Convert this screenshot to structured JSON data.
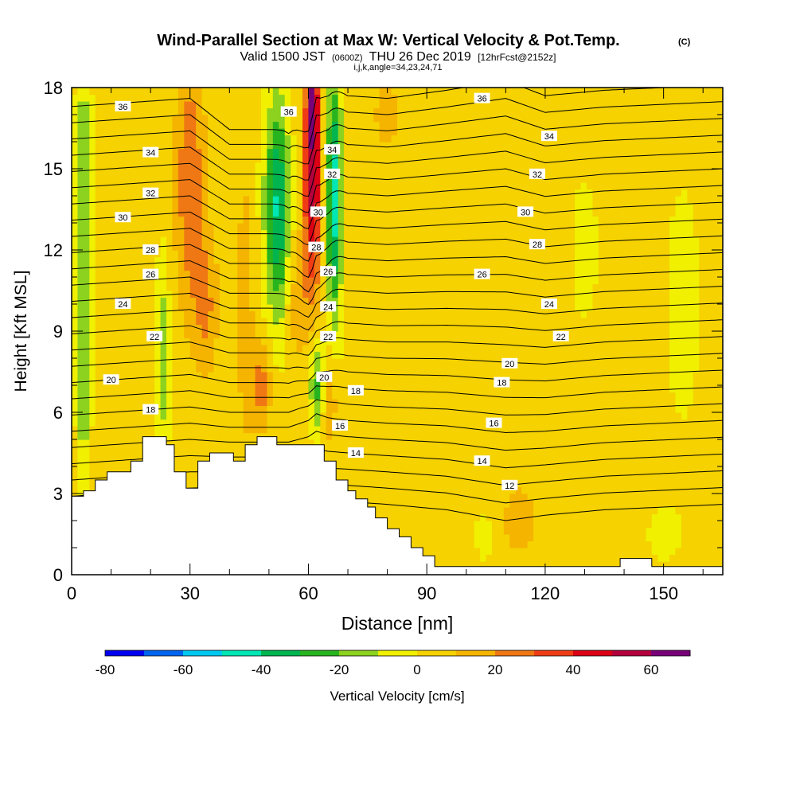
{
  "header": {
    "title": "Wind-Parallel Section at Max W: Vertical Velocity & Pot.Temp.",
    "copyright": "(C)",
    "valid_prefix": "Valid 1500 JST",
    "utc": "(0600Z)",
    "valid_date": "THU 26 Dec 2019",
    "forecast": "[12hrFcst@2152z]",
    "indices": "i,j,k,angle=34,23,24,71"
  },
  "chart_data": {
    "type": "heatmap",
    "title": "Wind-Parallel Section at Max W: Vertical Velocity & Pot.Temp.",
    "xlabel": "Distance [nm]",
    "ylabel": "Height [Kft MSL]",
    "xlim": [
      0,
      165
    ],
    "ylim": [
      0,
      18
    ],
    "x_ticks": [
      "0",
      "30",
      "60",
      "90",
      "120",
      "150"
    ],
    "x_tick_values": [
      0,
      30,
      60,
      90,
      120,
      150
    ],
    "y_ticks": [
      "0",
      "3",
      "6",
      "9",
      "12",
      "15",
      "18"
    ],
    "y_tick_values": [
      0,
      3,
      6,
      9,
      12,
      15,
      18
    ],
    "colorbar": {
      "label": "Vertical Velocity [cm/s]",
      "range": [
        -80,
        70
      ],
      "step": 10,
      "ticks": [
        "-80",
        "-60",
        "-40",
        "-20",
        "0",
        "20",
        "40",
        "60"
      ],
      "tick_values": [
        -80,
        -60,
        -40,
        -20,
        0,
        20,
        40,
        60
      ],
      "colors": [
        "#0000f0",
        "#0064f0",
        "#00c8f0",
        "#00e6b4",
        "#00b450",
        "#28b41e",
        "#8cd21e",
        "#f0f000",
        "#f5d200",
        "#f5b400",
        "#f07814",
        "#f03c14",
        "#dc0014",
        "#b4003c",
        "#780078"
      ]
    },
    "background_w": 4,
    "w_features": [
      {
        "x": 3,
        "y": 9,
        "sx": 1.8,
        "sy": 5.5,
        "w": -28
      },
      {
        "x": 3,
        "y": 16,
        "sx": 2,
        "sy": 2.5,
        "w": -20
      },
      {
        "x": 23,
        "y": 8,
        "sx": 1.8,
        "sy": 3.5,
        "w": -22
      },
      {
        "x": 30,
        "y": 14.5,
        "sx": 3.5,
        "sy": 4.5,
        "w": 26
      },
      {
        "x": 34,
        "y": 10,
        "sx": 3,
        "sy": 2.5,
        "w": 18
      },
      {
        "x": 44,
        "y": 10,
        "sx": 2.5,
        "sy": 6,
        "w": 10
      },
      {
        "x": 48,
        "y": 7,
        "sx": 2.5,
        "sy": 1.5,
        "w": 22
      },
      {
        "x": 50,
        "y": 14,
        "sx": 3,
        "sy": 4,
        "w": -10
      },
      {
        "x": 52.5,
        "y": 13.5,
        "sx": 2.8,
        "sy": 4.2,
        "w": -40
      },
      {
        "x": 57,
        "y": 10,
        "sx": 3,
        "sy": 2.2,
        "w": 12
      },
      {
        "x": 61,
        "y": 15,
        "sx": 2.2,
        "sy": 4.5,
        "w": 55
      },
      {
        "x": 61,
        "y": 17.5,
        "sx": 1.2,
        "sy": 1.2,
        "w": 30
      },
      {
        "x": 66.5,
        "y": 14,
        "sx": 2,
        "sy": 4.5,
        "w": -50
      },
      {
        "x": 62,
        "y": 7,
        "sx": 1.8,
        "sy": 1.8,
        "w": -28
      },
      {
        "x": 65.5,
        "y": 6.5,
        "sx": 1.5,
        "sy": 1.5,
        "w": 18
      },
      {
        "x": 113,
        "y": 2,
        "sx": 4,
        "sy": 1.2,
        "w": 16
      },
      {
        "x": 80,
        "y": 17,
        "sx": 4,
        "sy": 1.5,
        "w": 10
      },
      {
        "x": 130,
        "y": 12,
        "sx": 5,
        "sy": 4,
        "w": -6
      },
      {
        "x": 155,
        "y": 10,
        "sx": 5,
        "sy": 5,
        "w": -8
      },
      {
        "x": 105,
        "y": 1.5,
        "sx": 6,
        "sy": 2,
        "w": -5
      },
      {
        "x": 150,
        "y": 1.5,
        "sx": 6,
        "sy": 1.5,
        "w": -6
      }
    ],
    "terrain": [
      [
        0,
        2.9
      ],
      [
        3,
        2.9
      ],
      [
        3,
        3.1
      ],
      [
        6,
        3.1
      ],
      [
        6,
        3.5
      ],
      [
        9,
        3.5
      ],
      [
        9,
        3.8
      ],
      [
        15,
        3.8
      ],
      [
        15,
        4.2
      ],
      [
        18,
        4.2
      ],
      [
        18,
        5.1
      ],
      [
        24,
        5.1
      ],
      [
        24,
        4.8
      ],
      [
        26,
        4.8
      ],
      [
        26,
        3.8
      ],
      [
        29,
        3.8
      ],
      [
        29,
        3.2
      ],
      [
        32,
        3.2
      ],
      [
        32,
        4.2
      ],
      [
        35,
        4.2
      ],
      [
        35,
        4.5
      ],
      [
        41,
        4.5
      ],
      [
        41,
        4.2
      ],
      [
        44,
        4.2
      ],
      [
        44,
        4.8
      ],
      [
        47,
        4.8
      ],
      [
        47,
        5.1
      ],
      [
        52,
        5.1
      ],
      [
        52,
        4.8
      ],
      [
        64,
        4.8
      ],
      [
        64,
        4.2
      ],
      [
        67,
        4.2
      ],
      [
        67,
        3.5
      ],
      [
        70,
        3.5
      ],
      [
        70,
        3.1
      ],
      [
        72,
        3.1
      ],
      [
        72,
        2.8
      ],
      [
        75,
        2.8
      ],
      [
        75,
        2.5
      ],
      [
        77,
        2.5
      ],
      [
        77,
        2.1
      ],
      [
        80,
        2.1
      ],
      [
        80,
        1.7
      ],
      [
        83,
        1.7
      ],
      [
        83,
        1.4
      ],
      [
        86,
        1.4
      ],
      [
        86,
        1.0
      ],
      [
        89,
        1.0
      ],
      [
        89,
        0.7
      ],
      [
        92,
        0.7
      ],
      [
        92,
        0.3
      ],
      [
        139,
        0.3
      ],
      [
        139,
        0.6
      ],
      [
        147,
        0.6
      ],
      [
        147,
        0.3
      ],
      [
        165,
        0.3
      ]
    ],
    "theta_levels": [
      12,
      13,
      14,
      15,
      16,
      17,
      18,
      19,
      20,
      21,
      22,
      23,
      24,
      25,
      26,
      27,
      28,
      29,
      30,
      31,
      32,
      33,
      34,
      35,
      36,
      37
    ],
    "theta_heights": {
      "x": [
        0,
        10,
        20,
        30,
        40,
        50,
        55,
        60,
        62,
        65,
        70,
        80,
        95,
        110,
        120,
        135,
        150,
        165
      ],
      "base": [
        2.3,
        2.4,
        2.5,
        2.6,
        2.7,
        2.7,
        2.7,
        2.7,
        2.7,
        2.7,
        2.7,
        2.6,
        2.4,
        2.0,
        2.2,
        2.4,
        2.5,
        2.6
      ],
      "step": [
        0.6,
        0.6,
        0.6,
        0.6,
        0.55,
        0.55,
        0.55,
        0.6,
        0.65,
        0.62,
        0.6,
        0.6,
        0.62,
        0.65,
        0.62,
        0.62,
        0.62,
        0.62
      ],
      "updraft_shift": {
        "x": 61,
        "width": 4,
        "amplitude": -1.4
      }
    },
    "contour_labels": [
      {
        "text": "36",
        "x": 13,
        "y": 17.3
      },
      {
        "text": "34",
        "x": 20,
        "y": 15.6
      },
      {
        "text": "32",
        "x": 20,
        "y": 14.1
      },
      {
        "text": "30",
        "x": 13,
        "y": 13.2
      },
      {
        "text": "28",
        "x": 20,
        "y": 12
      },
      {
        "text": "26",
        "x": 20,
        "y": 11.1
      },
      {
        "text": "24",
        "x": 13,
        "y": 10
      },
      {
        "text": "22",
        "x": 21,
        "y": 8.8
      },
      {
        "text": "20",
        "x": 10,
        "y": 7.2
      },
      {
        "text": "18",
        "x": 20,
        "y": 6.1
      },
      {
        "text": "36",
        "x": 55,
        "y": 17.1
      },
      {
        "text": "34",
        "x": 66,
        "y": 15.7
      },
      {
        "text": "32",
        "x": 66,
        "y": 14.8
      },
      {
        "text": "30",
        "x": 62.5,
        "y": 13.4
      },
      {
        "text": "28",
        "x": 62,
        "y": 12.1
      },
      {
        "text": "26",
        "x": 65,
        "y": 11.2
      },
      {
        "text": "24",
        "x": 65,
        "y": 9.9
      },
      {
        "text": "22",
        "x": 65,
        "y": 8.8
      },
      {
        "text": "20",
        "x": 64,
        "y": 7.3
      },
      {
        "text": "18",
        "x": 72,
        "y": 6.8
      },
      {
        "text": "16",
        "x": 68,
        "y": 5.5
      },
      {
        "text": "14",
        "x": 72,
        "y": 4.5
      },
      {
        "text": "36",
        "x": 104,
        "y": 17.6
      },
      {
        "text": "34",
        "x": 121,
        "y": 16.2
      },
      {
        "text": "32",
        "x": 118,
        "y": 14.8
      },
      {
        "text": "30",
        "x": 115,
        "y": 13.4
      },
      {
        "text": "28",
        "x": 118,
        "y": 12.2
      },
      {
        "text": "26",
        "x": 104,
        "y": 11.1
      },
      {
        "text": "24",
        "x": 121,
        "y": 10
      },
      {
        "text": "22",
        "x": 124,
        "y": 8.8
      },
      {
        "text": "20",
        "x": 111,
        "y": 7.8
      },
      {
        "text": "18",
        "x": 109,
        "y": 7.1
      },
      {
        "text": "16",
        "x": 107,
        "y": 5.6
      },
      {
        "text": "14",
        "x": 104,
        "y": 4.2
      },
      {
        "text": "12",
        "x": 111,
        "y": 3.3
      }
    ]
  }
}
